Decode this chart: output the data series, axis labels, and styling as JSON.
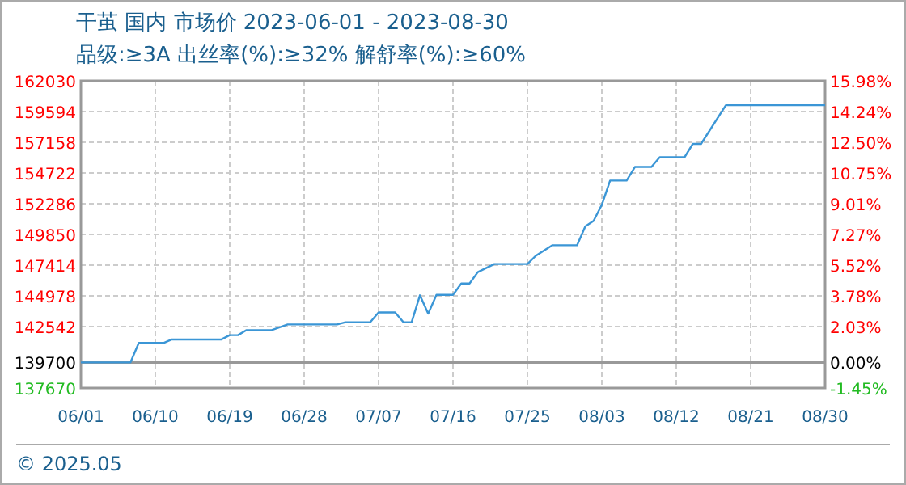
{
  "chart_data": {
    "type": "line",
    "title": "干茧 国内 市场价 2023-06-01 - 2023-08-30",
    "subtitle": "品级:≥3A 出丝率(%):≥32% 解舒率(%):≥60%",
    "x": [
      "2023-06-01",
      "2023-06-07",
      "2023-06-08",
      "2023-06-11",
      "2023-06-12",
      "2023-06-18",
      "2023-06-19",
      "2023-06-20",
      "2023-06-21",
      "2023-06-24",
      "2023-06-26",
      "2023-07-02",
      "2023-07-03",
      "2023-07-06",
      "2023-07-07",
      "2023-07-09",
      "2023-07-10",
      "2023-07-11",
      "2023-07-12",
      "2023-07-13",
      "2023-07-14",
      "2023-07-16",
      "2023-07-17",
      "2023-07-18",
      "2023-07-19",
      "2023-07-21",
      "2023-07-25",
      "2023-07-26",
      "2023-07-28",
      "2023-07-31",
      "2023-08-01",
      "2023-08-02",
      "2023-08-03",
      "2023-08-04",
      "2023-08-06",
      "2023-08-07",
      "2023-08-09",
      "2023-08-10",
      "2023-08-13",
      "2023-08-14",
      "2023-08-15",
      "2023-08-18",
      "2023-08-30"
    ],
    "series": [
      {
        "color": "#3b96d6",
        "values": [
          139700,
          139700,
          141240,
          141240,
          141520,
          141520,
          141860,
          141860,
          142250,
          142250,
          142710,
          142710,
          142890,
          142890,
          143660,
          143660,
          142890,
          142890,
          145020,
          143570,
          145060,
          145060,
          145960,
          145960,
          146860,
          147500,
          147500,
          148150,
          148990,
          148990,
          150490,
          150920,
          152200,
          154120,
          154120,
          155200,
          155200,
          155970,
          155970,
          157030,
          157030,
          160100,
          160100
        ]
      }
    ],
    "xlim": [
      "2023-06-01",
      "2023-08-30"
    ],
    "xticks": [
      {
        "value": "2023-06-01",
        "label": "06/01"
      },
      {
        "value": "2023-06-10",
        "label": "06/10"
      },
      {
        "value": "2023-06-19",
        "label": "06/19"
      },
      {
        "value": "2023-06-28",
        "label": "06/28"
      },
      {
        "value": "2023-07-07",
        "label": "07/07"
      },
      {
        "value": "2023-07-16",
        "label": "07/16"
      },
      {
        "value": "2023-07-25",
        "label": "07/25"
      },
      {
        "value": "2023-08-03",
        "label": "08/03"
      },
      {
        "value": "2023-08-12",
        "label": "08/12"
      },
      {
        "value": "2023-08-21",
        "label": "08/21"
      },
      {
        "value": "2023-08-30",
        "label": "08/30"
      }
    ],
    "ylim": [
      137670,
      162030
    ],
    "yticks": [
      137670,
      139700,
      142542,
      144978,
      147414,
      149850,
      152286,
      154722,
      157158,
      159594,
      162030
    ],
    "y2lim": [
      -1.45,
      15.98
    ],
    "y2ticks": [
      {
        "value": -1.45,
        "label": "-1.45%"
      },
      {
        "value": 0,
        "label": "0.00%"
      },
      {
        "value": 2.03,
        "label": "2.03%"
      },
      {
        "value": 3.78,
        "label": "3.78%"
      },
      {
        "value": 5.52,
        "label": "5.52%"
      },
      {
        "value": 7.27,
        "label": "7.27%"
      },
      {
        "value": 9.01,
        "label": "9.01%"
      },
      {
        "value": 10.75,
        "label": "10.75%"
      },
      {
        "value": 12.5,
        "label": "12.50%"
      },
      {
        "value": 14.24,
        "label": "14.24%"
      },
      {
        "value": 15.98,
        "label": "15.98%"
      }
    ],
    "ref_lines": [
      {
        "axis": "y2",
        "value": 0,
        "color": "#999999",
        "line_style": "solid"
      }
    ],
    "grid": true,
    "line_style": "solid",
    "annotations": [
      "© 2025.05"
    ]
  }
}
